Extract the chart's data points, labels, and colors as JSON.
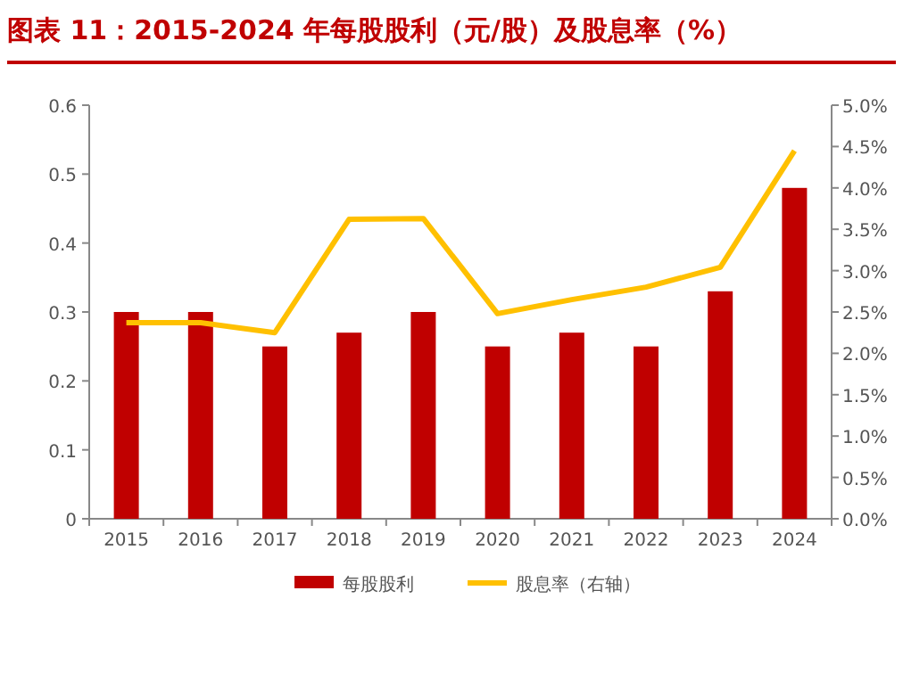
{
  "chart_data": {
    "type": "bar",
    "title": "图表 11：2015-2024 年每股股利（元/股）及股息率（%）",
    "categories": [
      "2015",
      "2016",
      "2017",
      "2018",
      "2019",
      "2020",
      "2021",
      "2022",
      "2023",
      "2024"
    ],
    "series": [
      {
        "name": "每股股利",
        "color": "#c00000",
        "values": [
          0.3,
          0.3,
          0.25,
          0.27,
          0.3,
          0.25,
          0.27,
          0.25,
          0.33,
          0.48
        ]
      },
      {
        "name": "股息率（右轴）",
        "type": "line",
        "axis": "y2",
        "color": "#ffc000",
        "values": [
          2.37,
          2.37,
          2.25,
          3.62,
          3.63,
          2.48,
          2.65,
          2.8,
          3.04,
          4.45
        ]
      }
    ],
    "ylim": [
      0,
      0.6
    ],
    "yticks": [
      {
        "value": 0,
        "label": "0"
      },
      {
        "value": 0.1,
        "label": "0.1"
      },
      {
        "value": 0.2,
        "label": "0.2"
      },
      {
        "value": 0.3,
        "label": "0.3"
      },
      {
        "value": 0.4,
        "label": "0.4"
      },
      {
        "value": 0.5,
        "label": "0.5"
      },
      {
        "value": 0.6,
        "label": "0.6"
      }
    ],
    "y2lim": [
      0,
      5
    ],
    "y2ticks": [
      {
        "value": 0,
        "label": "0.0%"
      },
      {
        "value": 0.5,
        "label": "0.5%"
      },
      {
        "value": 1,
        "label": "1.0%"
      },
      {
        "value": 1.5,
        "label": "1.5%"
      },
      {
        "value": 2,
        "label": "2.0%"
      },
      {
        "value": 2.5,
        "label": "2.5%"
      },
      {
        "value": 3,
        "label": "3.0%"
      },
      {
        "value": 3.5,
        "label": "3.5%"
      },
      {
        "value": 4,
        "label": "4.0%"
      },
      {
        "value": 4.5,
        "label": "4.5%"
      },
      {
        "value": 5,
        "label": "5.0%"
      }
    ],
    "grid": false,
    "legend": "bottom",
    "marker": "none",
    "line_style": "solid"
  }
}
